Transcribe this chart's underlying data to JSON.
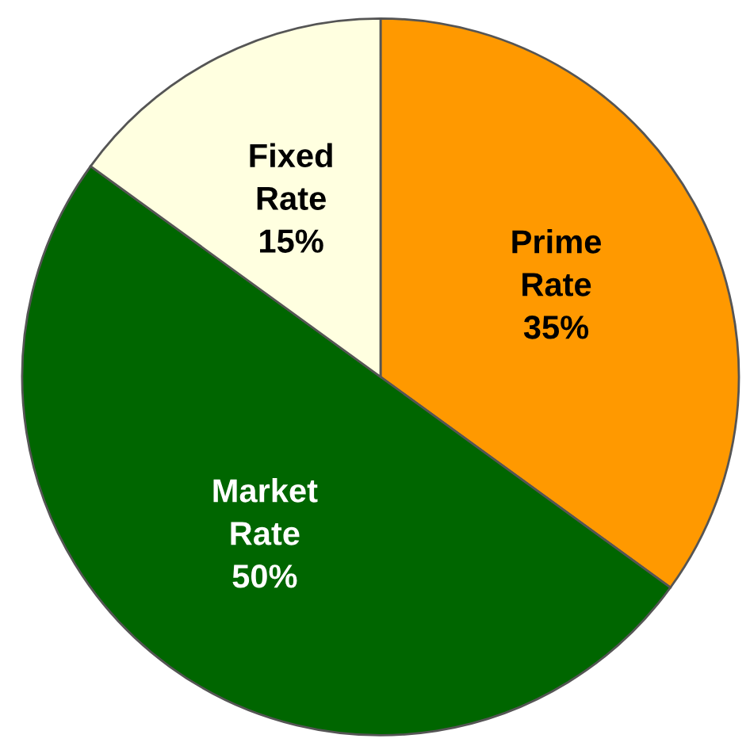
{
  "chart_data": {
    "type": "pie",
    "categories": [
      "Prime\nRate",
      "Market\nRate",
      "Fixed\nRate"
    ],
    "values": [
      35,
      50,
      15
    ],
    "colors": [
      "#ff9900",
      "#006600",
      "#ffffe0"
    ],
    "value_labels": [
      "35%",
      "50%",
      "15%"
    ],
    "legend": false
  }
}
